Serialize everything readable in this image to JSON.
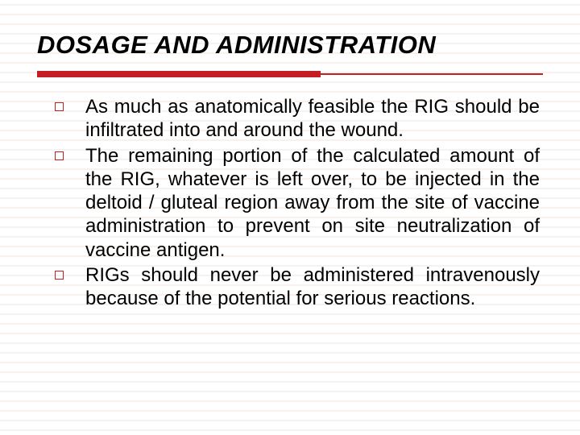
{
  "slide": {
    "title": "DOSAGE AND ADMINISTRATION",
    "title_fontsize": 31,
    "title_color": "#000000",
    "rule": {
      "thick_color": "#c41e24",
      "thick_width_pct": 56,
      "thin_color": "#c41e24",
      "thin_left_pct": 56,
      "thin_width_pct": 44
    },
    "bullets": {
      "marker_border_color": "#c41e24",
      "text_fontsize": 24,
      "line_height": 1.22,
      "items": [
        "As much as anatomically feasible the RIG should be infiltrated into and around the wound.",
        "The remaining portion of the calculated amount of the RIG, whatever is left over, to be injected in the deltoid / gluteal region away from the site of vaccine administration to prevent on site neutralization of vaccine antigen.",
        "RIGs should never be administered intravenously because of the potential for serious reactions."
      ]
    },
    "background": {
      "hairline_color": "#f2e6de",
      "hairline_spacing": 12,
      "hairline_start": 6
    }
  }
}
